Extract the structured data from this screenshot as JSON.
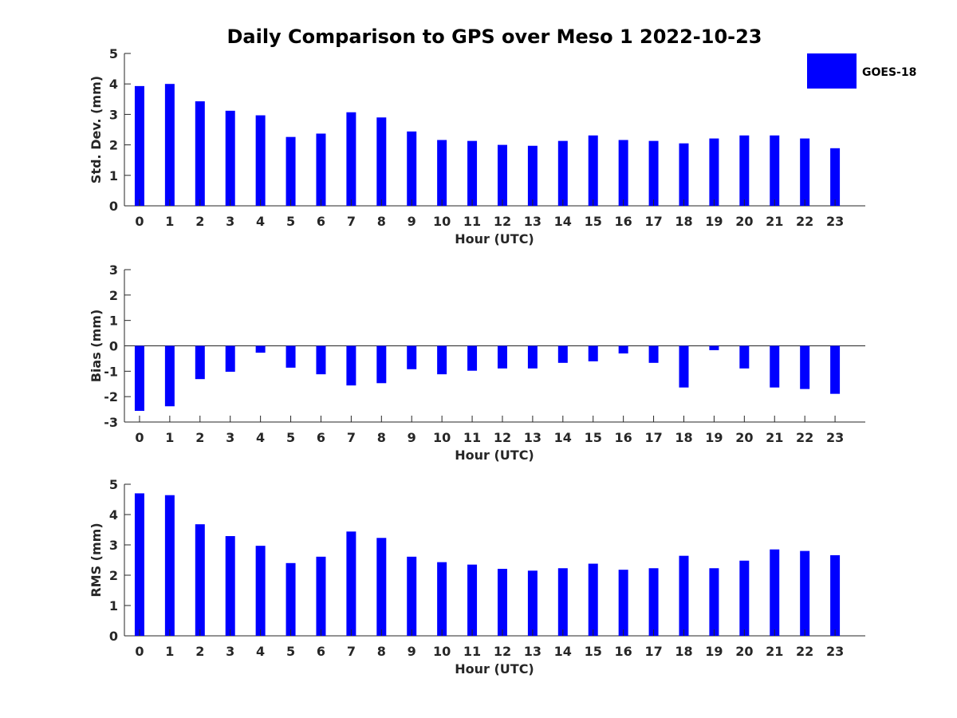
{
  "figure_title": "Daily Comparison to GPS over Meso 1 2022-10-23",
  "legend": {
    "label": "GOES-18",
    "color": "#0000ff",
    "placement": "top-right"
  },
  "chart_data": [
    {
      "type": "bar",
      "title": "",
      "xlabel": "Hour (UTC)",
      "ylabel": "Std. Dev. (mm)",
      "categories": [
        0,
        1,
        2,
        3,
        4,
        5,
        6,
        7,
        8,
        9,
        10,
        11,
        12,
        13,
        14,
        15,
        16,
        17,
        18,
        19,
        20,
        21,
        22,
        23
      ],
      "series": [
        {
          "name": "GOES-18",
          "color": "#0000ff",
          "values": [
            3.93,
            4.0,
            3.43,
            3.12,
            2.97,
            2.26,
            2.37,
            3.07,
            2.9,
            2.44,
            2.16,
            2.13,
            2.0,
            1.97,
            2.13,
            2.31,
            2.16,
            2.13,
            2.05,
            2.21,
            2.31,
            2.31,
            2.21,
            1.89
          ]
        }
      ],
      "ylim": [
        0,
        5
      ],
      "yticks": [
        0,
        1,
        2,
        3,
        4,
        5
      ],
      "grid": false
    },
    {
      "type": "bar",
      "title": "",
      "xlabel": "Hour (UTC)",
      "ylabel": "Bias (mm)",
      "categories": [
        0,
        1,
        2,
        3,
        4,
        5,
        6,
        7,
        8,
        9,
        10,
        11,
        12,
        13,
        14,
        15,
        16,
        17,
        18,
        19,
        20,
        21,
        22,
        23
      ],
      "series": [
        {
          "name": "GOES-18",
          "color": "#0000ff",
          "values": [
            -2.56,
            -2.38,
            -1.31,
            -1.02,
            -0.27,
            -0.86,
            -1.12,
            -1.56,
            -1.47,
            -0.92,
            -1.12,
            -0.98,
            -0.89,
            -0.89,
            -0.67,
            -0.61,
            -0.3,
            -0.67,
            -1.64,
            -0.17,
            -0.89,
            -1.64,
            -1.7,
            -1.89
          ]
        }
      ],
      "ylim": [
        -3,
        3
      ],
      "yticks": [
        -3,
        -2,
        -1,
        0,
        1,
        2,
        3
      ],
      "grid": false
    },
    {
      "type": "bar",
      "title": "",
      "xlabel": "Hour (UTC)",
      "ylabel": "RMS (mm)",
      "categories": [
        0,
        1,
        2,
        3,
        4,
        5,
        6,
        7,
        8,
        9,
        10,
        11,
        12,
        13,
        14,
        15,
        16,
        17,
        18,
        19,
        20,
        21,
        22,
        23
      ],
      "series": [
        {
          "name": "GOES-18",
          "color": "#0000ff",
          "values": [
            4.7,
            4.64,
            3.68,
            3.29,
            2.97,
            2.4,
            2.61,
            3.44,
            3.23,
            2.61,
            2.43,
            2.35,
            2.21,
            2.15,
            2.23,
            2.38,
            2.18,
            2.23,
            2.64,
            2.23,
            2.48,
            2.85,
            2.8,
            2.66
          ]
        }
      ],
      "ylim": [
        0,
        5
      ],
      "yticks": [
        0,
        1,
        2,
        3,
        4,
        5
      ],
      "grid": false
    }
  ]
}
